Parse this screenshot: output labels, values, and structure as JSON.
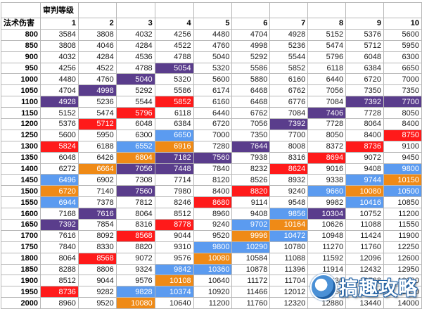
{
  "table": {
    "header_top_label": "审判等级",
    "row_header_label": "法术伤害",
    "levels": [
      "1",
      "2",
      "3",
      "4",
      "5",
      "6",
      "7",
      "8",
      "9",
      "10"
    ],
    "rows": [
      {
        "damage": "800",
        "cells": [
          {
            "v": "3584"
          },
          {
            "v": "3808"
          },
          {
            "v": "4032"
          },
          {
            "v": "4256"
          },
          {
            "v": "4480"
          },
          {
            "v": "4704"
          },
          {
            "v": "4928"
          },
          {
            "v": "5152"
          },
          {
            "v": "5376"
          },
          {
            "v": "5600"
          }
        ]
      },
      {
        "damage": "850",
        "cells": [
          {
            "v": "3808"
          },
          {
            "v": "4046"
          },
          {
            "v": "4284"
          },
          {
            "v": "4522"
          },
          {
            "v": "4760"
          },
          {
            "v": "4998"
          },
          {
            "v": "5236"
          },
          {
            "v": "5474"
          },
          {
            "v": "5712"
          },
          {
            "v": "5950"
          }
        ]
      },
      {
        "damage": "900",
        "cells": [
          {
            "v": "4032"
          },
          {
            "v": "4284"
          },
          {
            "v": "4536"
          },
          {
            "v": "4788"
          },
          {
            "v": "5040"
          },
          {
            "v": "5292"
          },
          {
            "v": "5544"
          },
          {
            "v": "5796"
          },
          {
            "v": "6048"
          },
          {
            "v": "6300"
          }
        ]
      },
      {
        "damage": "950",
        "cells": [
          {
            "v": "4256"
          },
          {
            "v": "4522"
          },
          {
            "v": "4788"
          },
          {
            "v": "5054",
            "c": "purple"
          },
          {
            "v": "5320"
          },
          {
            "v": "5586"
          },
          {
            "v": "5852"
          },
          {
            "v": "6118"
          },
          {
            "v": "6384"
          },
          {
            "v": "6650"
          }
        ]
      },
      {
        "damage": "1000",
        "cells": [
          {
            "v": "4480"
          },
          {
            "v": "4760"
          },
          {
            "v": "5040",
            "c": "purple"
          },
          {
            "v": "5320"
          },
          {
            "v": "5600"
          },
          {
            "v": "5880"
          },
          {
            "v": "6160"
          },
          {
            "v": "6440"
          },
          {
            "v": "6720"
          },
          {
            "v": "7000"
          }
        ]
      },
      {
        "damage": "1050",
        "cells": [
          {
            "v": "4704"
          },
          {
            "v": "4998",
            "c": "purple"
          },
          {
            "v": "5292"
          },
          {
            "v": "5586"
          },
          {
            "v": "6174"
          },
          {
            "v": "6468"
          },
          {
            "v": "6762"
          },
          {
            "v": "7056"
          },
          {
            "v": "7350"
          },
          {
            "v": "7350"
          }
        ]
      },
      {
        "damage": "1100",
        "cells": [
          {
            "v": "4928",
            "c": "purple"
          },
          {
            "v": "5236"
          },
          {
            "v": "5544"
          },
          {
            "v": "5852",
            "c": "red"
          },
          {
            "v": "6160"
          },
          {
            "v": "6468"
          },
          {
            "v": "6776"
          },
          {
            "v": "7084"
          },
          {
            "v": "7392",
            "c": "purple"
          },
          {
            "v": "7700",
            "c": "purple"
          }
        ]
      },
      {
        "damage": "1150",
        "cells": [
          {
            "v": "5152"
          },
          {
            "v": "5474"
          },
          {
            "v": "5796",
            "c": "red"
          },
          {
            "v": "6118"
          },
          {
            "v": "6440"
          },
          {
            "v": "6762"
          },
          {
            "v": "7084"
          },
          {
            "v": "7406",
            "c": "purple"
          },
          {
            "v": "7728"
          },
          {
            "v": "8050"
          }
        ]
      },
      {
        "damage": "1200",
        "cells": [
          {
            "v": "5376"
          },
          {
            "v": "5712",
            "c": "red"
          },
          {
            "v": "6048"
          },
          {
            "v": "6384"
          },
          {
            "v": "6720"
          },
          {
            "v": "7056"
          },
          {
            "v": "7392",
            "c": "purple"
          },
          {
            "v": "7728"
          },
          {
            "v": "8064"
          },
          {
            "v": "8400"
          }
        ]
      },
      {
        "damage": "1250",
        "cells": [
          {
            "v": "5600"
          },
          {
            "v": "5950"
          },
          {
            "v": "6300"
          },
          {
            "v": "6650",
            "c": "blue"
          },
          {
            "v": "7000"
          },
          {
            "v": "7350"
          },
          {
            "v": "7700"
          },
          {
            "v": "8050"
          },
          {
            "v": "8400"
          },
          {
            "v": "8750",
            "c": "red"
          }
        ]
      },
      {
        "damage": "1300",
        "cells": [
          {
            "v": "5824",
            "c": "red"
          },
          {
            "v": "6188"
          },
          {
            "v": "6552",
            "c": "blue"
          },
          {
            "v": "6916",
            "c": "orange"
          },
          {
            "v": "7280"
          },
          {
            "v": "7644",
            "c": "purple"
          },
          {
            "v": "8008"
          },
          {
            "v": "8372"
          },
          {
            "v": "8736",
            "c": "red"
          },
          {
            "v": "9100"
          }
        ]
      },
      {
        "damage": "1350",
        "cells": [
          {
            "v": "6048"
          },
          {
            "v": "6426"
          },
          {
            "v": "6804",
            "c": "orange"
          },
          {
            "v": "7182",
            "c": "purple"
          },
          {
            "v": "7560",
            "c": "purple"
          },
          {
            "v": "7938"
          },
          {
            "v": "8316"
          },
          {
            "v": "8694",
            "c": "red"
          },
          {
            "v": "9072"
          },
          {
            "v": "9450"
          }
        ]
      },
      {
        "damage": "1400",
        "cells": [
          {
            "v": "6272"
          },
          {
            "v": "6664",
            "c": "orange"
          },
          {
            "v": "7056",
            "c": "purple"
          },
          {
            "v": "7448",
            "c": "purple"
          },
          {
            "v": "7840"
          },
          {
            "v": "8232"
          },
          {
            "v": "8624",
            "c": "red"
          },
          {
            "v": "9016"
          },
          {
            "v": "9408"
          },
          {
            "v": "9800",
            "c": "blue"
          }
        ]
      },
      {
        "damage": "1450",
        "cells": [
          {
            "v": "6496",
            "c": "blue"
          },
          {
            "v": "6902"
          },
          {
            "v": "7308"
          },
          {
            "v": "7714"
          },
          {
            "v": "8120"
          },
          {
            "v": "8526"
          },
          {
            "v": "8932"
          },
          {
            "v": "9338"
          },
          {
            "v": "9744",
            "c": "blue"
          },
          {
            "v": "10150",
            "c": "orange"
          }
        ]
      },
      {
        "damage": "1500",
        "cells": [
          {
            "v": "6720",
            "c": "orange"
          },
          {
            "v": "7140"
          },
          {
            "v": "7560",
            "c": "purple"
          },
          {
            "v": "7980"
          },
          {
            "v": "8400"
          },
          {
            "v": "8820",
            "c": "red"
          },
          {
            "v": "9240"
          },
          {
            "v": "9660",
            "c": "blue"
          },
          {
            "v": "10080",
            "c": "orange"
          },
          {
            "v": "10500",
            "c": "blue"
          }
        ]
      },
      {
        "damage": "1550",
        "cells": [
          {
            "v": "6944",
            "c": "blue"
          },
          {
            "v": "7378"
          },
          {
            "v": "7812"
          },
          {
            "v": "8246"
          },
          {
            "v": "8680",
            "c": "red"
          },
          {
            "v": "9114"
          },
          {
            "v": "9548"
          },
          {
            "v": "9982"
          },
          {
            "v": "10416",
            "c": "blue"
          },
          {
            "v": "10850"
          }
        ]
      },
      {
        "damage": "1600",
        "cells": [
          {
            "v": "7168"
          },
          {
            "v": "7616",
            "c": "purple"
          },
          {
            "v": "8064"
          },
          {
            "v": "8512"
          },
          {
            "v": "8960"
          },
          {
            "v": "9408"
          },
          {
            "v": "9856",
            "c": "blue"
          },
          {
            "v": "10304",
            "c": "purple"
          },
          {
            "v": "10752"
          },
          {
            "v": "11200"
          }
        ]
      },
      {
        "damage": "1650",
        "cells": [
          {
            "v": "7392",
            "c": "purple"
          },
          {
            "v": "7854"
          },
          {
            "v": "8316"
          },
          {
            "v": "8778",
            "c": "red"
          },
          {
            "v": "9240"
          },
          {
            "v": "9702",
            "c": "blue"
          },
          {
            "v": "10164",
            "c": "orange"
          },
          {
            "v": "10626"
          },
          {
            "v": "11088"
          },
          {
            "v": "11550"
          }
        ]
      },
      {
        "damage": "1700",
        "cells": [
          {
            "v": "7616"
          },
          {
            "v": "8092"
          },
          {
            "v": "8568",
            "c": "red"
          },
          {
            "v": "9044"
          },
          {
            "v": "9520"
          },
          {
            "v": "9996",
            "c": "orange"
          },
          {
            "v": "10472",
            "c": "blue"
          },
          {
            "v": "10948"
          },
          {
            "v": "11424"
          },
          {
            "v": "11900"
          }
        ]
      },
      {
        "damage": "1750",
        "cells": [
          {
            "v": "7840"
          },
          {
            "v": "8330"
          },
          {
            "v": "8820"
          },
          {
            "v": "9310"
          },
          {
            "v": "9800",
            "c": "blue"
          },
          {
            "v": "10290",
            "c": "blue"
          },
          {
            "v": "10780"
          },
          {
            "v": "11270"
          },
          {
            "v": "11760"
          },
          {
            "v": "12250"
          }
        ]
      },
      {
        "damage": "1800",
        "cells": [
          {
            "v": "8064"
          },
          {
            "v": "8568",
            "c": "red"
          },
          {
            "v": "9072"
          },
          {
            "v": "9576"
          },
          {
            "v": "10080",
            "c": "orange"
          },
          {
            "v": "10584"
          },
          {
            "v": "11088"
          },
          {
            "v": "11592"
          },
          {
            "v": "12096"
          },
          {
            "v": "12600"
          }
        ]
      },
      {
        "damage": "1850",
        "cells": [
          {
            "v": "8288"
          },
          {
            "v": "8806"
          },
          {
            "v": "9324"
          },
          {
            "v": "9842",
            "c": "blue"
          },
          {
            "v": "10360",
            "c": "blue"
          },
          {
            "v": "10878"
          },
          {
            "v": "11396"
          },
          {
            "v": "11914"
          },
          {
            "v": "12432"
          },
          {
            "v": "12950"
          }
        ]
      },
      {
        "damage": "1900",
        "cells": [
          {
            "v": "8512"
          },
          {
            "v": "9044"
          },
          {
            "v": "9576"
          },
          {
            "v": "10108",
            "c": "orange"
          },
          {
            "v": "10640"
          },
          {
            "v": "11172"
          },
          {
            "v": "11704"
          },
          {
            "v": "12236"
          },
          {
            "v": "12768"
          },
          {
            "v": "13300"
          }
        ]
      },
      {
        "damage": "1950",
        "cells": [
          {
            "v": "8736",
            "c": "red"
          },
          {
            "v": "9282"
          },
          {
            "v": "9828",
            "c": "blue"
          },
          {
            "v": "10374",
            "c": "blue"
          },
          {
            "v": "10920"
          },
          {
            "v": "11466"
          },
          {
            "v": "12012"
          },
          {
            "v": "12558"
          },
          {
            "v": "13104"
          },
          {
            "v": "13650"
          }
        ]
      },
      {
        "damage": "2000",
        "cells": [
          {
            "v": "8960"
          },
          {
            "v": "9520"
          },
          {
            "v": "10080",
            "c": "orange"
          },
          {
            "v": "10640"
          },
          {
            "v": "11200"
          },
          {
            "v": "11760"
          },
          {
            "v": "12320"
          },
          {
            "v": "12880"
          },
          {
            "v": "13440"
          },
          {
            "v": "14000"
          }
        ]
      }
    ]
  },
  "watermark": {
    "text": "搞趣攻略",
    "icon": "film-reel-logo-icon"
  }
}
